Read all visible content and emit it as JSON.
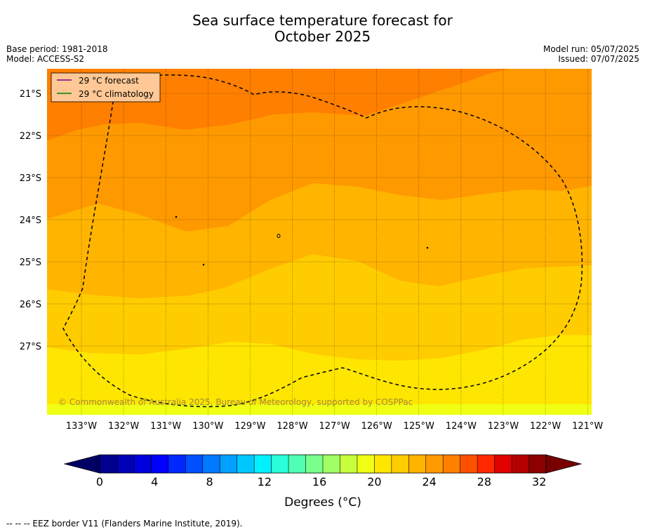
{
  "header": {
    "title_line1": "Sea surface temperature forecast for",
    "title_line2": "October 2025",
    "base_period": "Base period: 1981-2018",
    "model": "Model: ACCESS-S2",
    "model_run": "Model run: 05/07/2025",
    "issued": "Issued: 07/07/2025"
  },
  "legend": {
    "forecast_label": "29 °C  forecast",
    "forecast_color": "#800080",
    "climatology_label": "29 °C  climatology",
    "climatology_color": "#008000",
    "background": "#ffc896"
  },
  "map": {
    "lat_labels": [
      "21°S",
      "22°S",
      "23°S",
      "24°S",
      "25°S",
      "26°S",
      "27°S"
    ],
    "lon_labels": [
      "133°W",
      "132°W",
      "131°W",
      "130°W",
      "129°W",
      "128°W",
      "127°W",
      "126°W",
      "125°W",
      "124°W",
      "123°W",
      "122°W",
      "121°W"
    ],
    "copyright": "© Commonwealth of Australia 2025, Bureau of Meteorology, supported by COSPPac",
    "band_colors": [
      "#ffe600",
      "#ffcc00",
      "#ffb400",
      "#ff9900",
      "#ff7f00"
    ]
  },
  "colorbar": {
    "ticks": [
      "0",
      "4",
      "8",
      "12",
      "16",
      "20",
      "24",
      "28",
      "32"
    ],
    "label": "Degrees (°C)",
    "colors": [
      "#00008c",
      "#0000b4",
      "#0000dc",
      "#0000ff",
      "#0028ff",
      "#0050ff",
      "#0078ff",
      "#00a0ff",
      "#00c8ff",
      "#00f0ff",
      "#28ffd8",
      "#50ffb4",
      "#78ff8c",
      "#a0ff64",
      "#c8ff3c",
      "#f0ff14",
      "#ffe600",
      "#ffcc00",
      "#ffb400",
      "#ff9900",
      "#ff7f00",
      "#ff5000",
      "#ff2800",
      "#e00000",
      "#b40000",
      "#8c0000"
    ]
  },
  "footer": {
    "eez_note": "--  --  -- EEZ border V11 (Flanders Marine Institute, 2019)."
  }
}
